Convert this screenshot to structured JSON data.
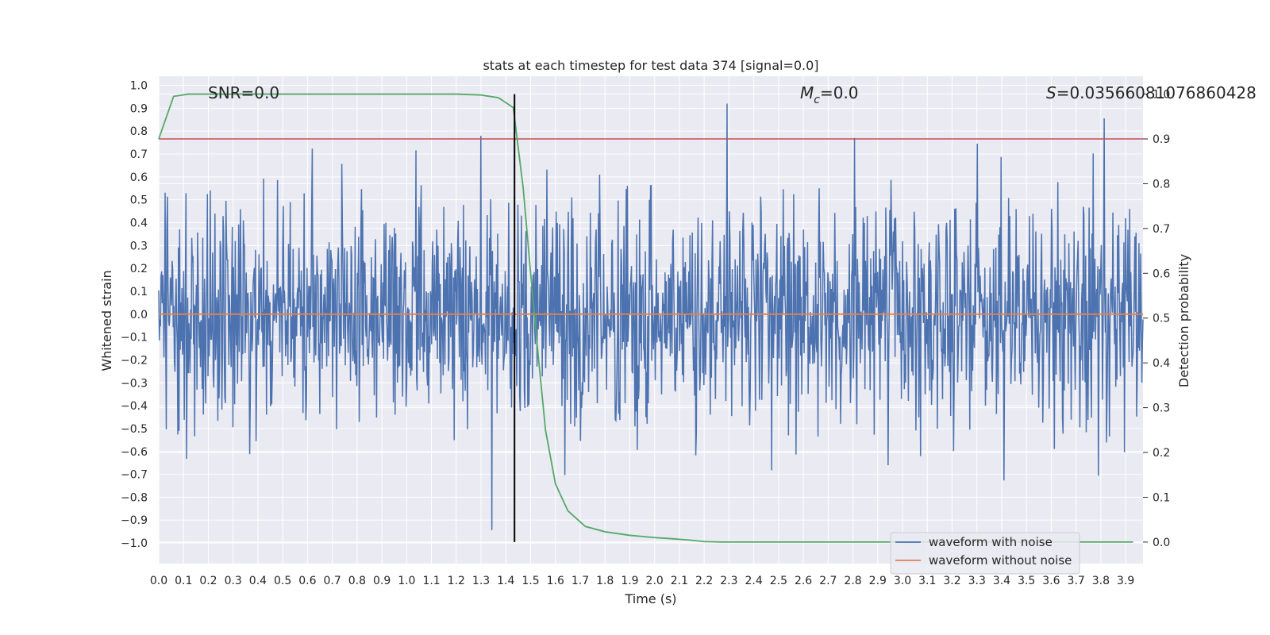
{
  "chart_data": {
    "type": "line",
    "title": "stats at each timestep for test data 374 [signal=0.0]",
    "xlabel": "Time (s)",
    "ylabel": "Whitened strain",
    "y2label": "Detection probability",
    "xlim": [
      0.0,
      3.97
    ],
    "ylim": [
      -1.09,
      1.04
    ],
    "y2lim": [
      -0.048,
      1.04
    ],
    "x_ticks": [
      "0.0",
      "0.1",
      "0.2",
      "0.3",
      "0.4",
      "0.5",
      "0.6",
      "0.7",
      "0.8",
      "0.9",
      "1.0",
      "1.1",
      "1.2",
      "1.3",
      "1.4",
      "1.5",
      "1.6",
      "1.7",
      "1.8",
      "1.9",
      "2.0",
      "2.1",
      "2.2",
      "2.3",
      "2.4",
      "2.5",
      "2.6",
      "2.7",
      "2.8",
      "2.9",
      "3.0",
      "3.1",
      "3.2",
      "3.3",
      "3.4",
      "3.5",
      "3.6",
      "3.7",
      "3.8",
      "3.9"
    ],
    "y_ticks": [
      "1.0",
      "0.9",
      "0.8",
      "0.7",
      "0.6",
      "0.5",
      "0.4",
      "0.3",
      "0.2",
      "0.1",
      "0.0",
      "−0.1",
      "−0.2",
      "−0.3",
      "−0.4",
      "−0.5",
      "−0.6",
      "−0.7",
      "−0.8",
      "−0.9",
      "−1.0"
    ],
    "y2_ticks": [
      "1.0",
      "0.9",
      "0.8",
      "0.7",
      "0.6",
      "0.5",
      "0.4",
      "0.3",
      "0.2",
      "0.1",
      "0.0"
    ],
    "grid": true,
    "legend_position": "lower-right",
    "annotations": {
      "snr": "SNR=0.0",
      "mc_symbol": "M",
      "mc_sub": "c",
      "mc_value": "=0.0",
      "s_symbol": "S",
      "s_value": "=0.03566081076860428"
    },
    "series": [
      {
        "name": "waveform with noise",
        "color": "#4c72b0",
        "axis": "left",
        "noise_amplitude": 0.25,
        "peak_amplitude": 0.98,
        "sample_count": 1700
      },
      {
        "name": "waveform without noise",
        "color": "#dd8452",
        "axis": "left",
        "constant": 0.0
      }
    ],
    "probability": {
      "color": "#55a868",
      "axis": "right",
      "x": [
        0.0,
        0.06,
        0.12,
        0.2,
        0.4,
        0.6,
        0.8,
        1.0,
        1.2,
        1.3,
        1.37,
        1.43,
        1.47,
        1.5,
        1.53,
        1.56,
        1.6,
        1.65,
        1.72,
        1.8,
        1.9,
        2.0,
        2.07,
        2.14,
        2.2,
        2.27,
        2.34,
        2.5,
        3.0,
        3.5,
        3.93
      ],
      "y": [
        0.9,
        0.995,
        1.0,
        1.0,
        1.0,
        1.0,
        1.0,
        1.0,
        1.0,
        0.998,
        0.992,
        0.97,
        0.79,
        0.6,
        0.42,
        0.25,
        0.13,
        0.07,
        0.035,
        0.023,
        0.015,
        0.01,
        0.0075,
        0.0045,
        0.001,
        0.0,
        0.0,
        0.0,
        0.0,
        0.0,
        0.0
      ]
    },
    "threshold": {
      "value": 0.9,
      "color": "#c44e52",
      "axis": "right"
    },
    "vline": {
      "x": 1.435,
      "color": "#000000",
      "y2_top": 1.0,
      "y2_bottom": 0.0
    }
  }
}
